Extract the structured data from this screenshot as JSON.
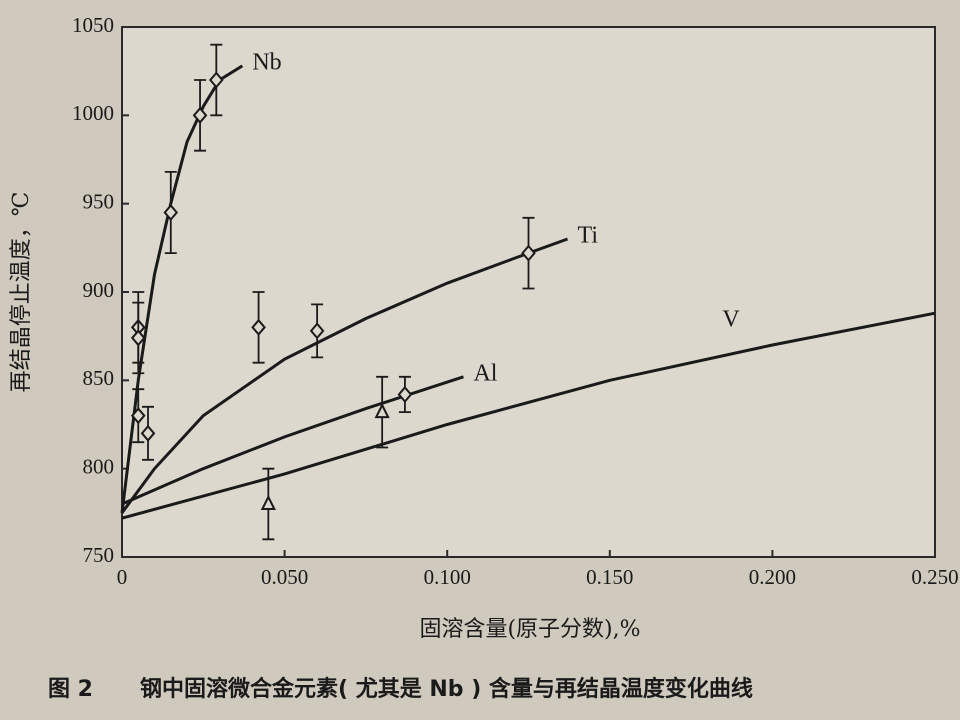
{
  "chart_data": {
    "type": "line",
    "figure_number": "图 2",
    "title": "钢中固溶微合金元素( 尤其是 Nb ) 含量与再结晶温度变化曲线",
    "x_label": "固溶含量(原子分数),%",
    "y_label": "再结晶停止温度，℃",
    "xlim": [
      0,
      0.25
    ],
    "ylim": [
      750,
      1050
    ],
    "xticks": [
      0,
      {
        "value": 0.05,
        "label": "0.050"
      },
      {
        "value": 0.1,
        "label": "0.100"
      },
      {
        "value": 0.15,
        "label": "0.150"
      },
      {
        "value": 0.2,
        "label": "0.200"
      },
      {
        "value": 0.25,
        "label": "0.250"
      }
    ],
    "yticks": [
      750,
      800,
      850,
      900,
      950,
      1000,
      1050
    ],
    "series": [
      {
        "name": "Nb",
        "color": "#1a1a1a",
        "marker": "diamond",
        "x": [
          0,
          0.005,
          0.01,
          0.015,
          0.02,
          0.025,
          0.03,
          0.037
        ],
        "values": [
          775,
          850,
          910,
          950,
          985,
          1005,
          1020,
          1028
        ],
        "points": {
          "x": [
            0.005,
            0.005,
            0.005,
            0.008,
            0.015,
            0.024,
            0.029
          ],
          "values": [
            880,
            874,
            830,
            820,
            945,
            1000,
            1020
          ],
          "errors": [
            20,
            20,
            15,
            15,
            23,
            20,
            20
          ]
        }
      },
      {
        "name": "Ti",
        "color": "#1a1a1a",
        "marker": "diamond",
        "x": [
          0,
          0.01,
          0.025,
          0.05,
          0.075,
          0.1,
          0.125,
          0.137
        ],
        "values": [
          775,
          800,
          830,
          862,
          885,
          905,
          922,
          930
        ],
        "points": {
          "x": [
            0.042,
            0.06,
            0.125
          ],
          "values": [
            880,
            878,
            922
          ],
          "errors": [
            20,
            15,
            20
          ]
        }
      },
      {
        "name": "Al",
        "color": "#1a1a1a",
        "marker": "diamond",
        "x": [
          0,
          0.025,
          0.05,
          0.075,
          0.105
        ],
        "values": [
          780,
          800,
          818,
          834,
          852
        ],
        "points": {
          "x": [
            0.087
          ],
          "values": [
            842
          ],
          "errors": [
            10
          ]
        }
      },
      {
        "name": "V",
        "color": "#1a1a1a",
        "marker": "triangle",
        "x": [
          0,
          0.05,
          0.1,
          0.15,
          0.2,
          0.25
        ],
        "values": [
          772,
          797,
          825,
          850,
          870,
          888
        ],
        "points": {
          "x": [
            0.045,
            0.08
          ],
          "values": [
            780,
            832
          ],
          "errors": [
            20,
            20
          ]
        }
      }
    ]
  }
}
